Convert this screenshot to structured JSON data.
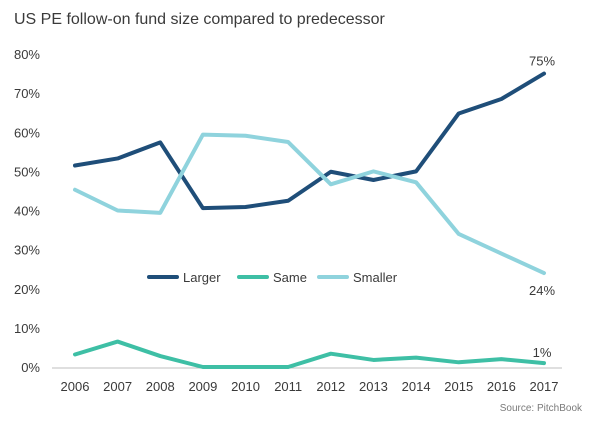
{
  "chart_data": {
    "type": "line",
    "title": "US PE follow-on fund size compared to predecessor",
    "source": "Source: PitchBook",
    "x": [
      "2006",
      "2007",
      "2008",
      "2009",
      "2010",
      "2011",
      "2012",
      "2013",
      "2014",
      "2015",
      "2016",
      "2017"
    ],
    "ylim": [
      0,
      80
    ],
    "y_ticks": [
      0,
      10,
      20,
      30,
      40,
      50,
      60,
      70,
      80
    ],
    "y_tick_labels": [
      "0%",
      "10%",
      "20%",
      "30%",
      "40%",
      "50%",
      "60%",
      "70%",
      "80%"
    ],
    "grid": false,
    "legend_position": "middle-left",
    "series": [
      {
        "name": "Larger",
        "color": "#1f4e79",
        "values": [
          51.5,
          53.3,
          57.4,
          40.6,
          40.9,
          42.5,
          49.9,
          47.8,
          50.0,
          64.8,
          68.5,
          75.0
        ],
        "end_label": "75%"
      },
      {
        "name": "Same",
        "color": "#3ebfa5",
        "values": [
          3.2,
          6.5,
          2.8,
          0.0,
          0.0,
          0.0,
          3.4,
          1.8,
          2.4,
          1.2,
          2.0,
          1.0
        ],
        "end_label": "1%"
      },
      {
        "name": "Smaller",
        "color": "#8fd3dd",
        "values": [
          45.3,
          40.0,
          39.4,
          59.4,
          59.1,
          57.5,
          46.7,
          50.0,
          47.2,
          34.0,
          29.0,
          24.0
        ],
        "end_label": "24%"
      }
    ]
  }
}
